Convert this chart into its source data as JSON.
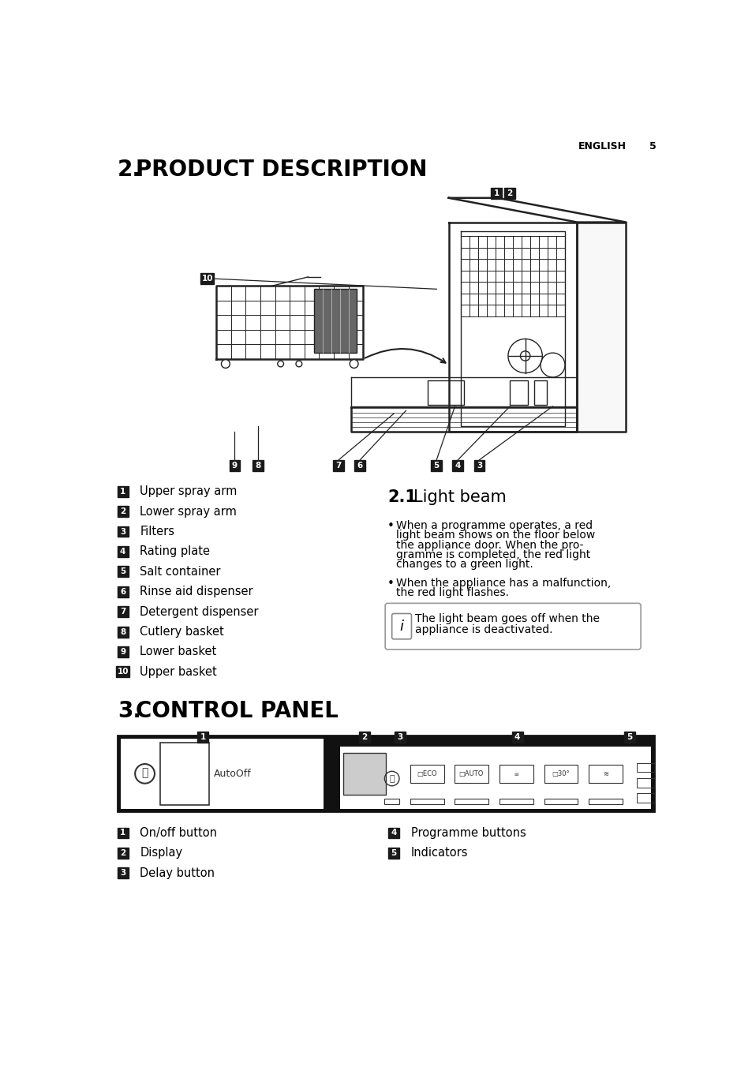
{
  "page_header": "ENGLISH",
  "page_num": "5",
  "section2_bold": "2.",
  "section2_title": "PRODUCT DESCRIPTION",
  "section3_bold": "3.",
  "section3_title": "CONTROL PANEL",
  "section21_bold": "2.1",
  "section21_title": "Light beam",
  "parts_list": [
    [
      "1",
      "Upper spray arm"
    ],
    [
      "2",
      "Lower spray arm"
    ],
    [
      "3",
      "Filters"
    ],
    [
      "4",
      "Rating plate"
    ],
    [
      "5",
      "Salt container"
    ],
    [
      "6",
      "Rinse aid dispenser"
    ],
    [
      "7",
      "Detergent dispenser"
    ],
    [
      "8",
      "Cutlery basket"
    ],
    [
      "9",
      "Lower basket"
    ],
    [
      "10",
      "Upper basket"
    ]
  ],
  "bullet1_lines": [
    "When a programme operates, a red",
    "light beam shows on the floor below",
    "the appliance door. When the pro-",
    "gramme is completed, the red light",
    "changes to a green light."
  ],
  "bullet2_lines": [
    "When the appliance has a malfunction,",
    "the red light flashes."
  ],
  "info_text_lines": [
    "The light beam goes off when the",
    "appliance is deactivated."
  ],
  "control_labels_left": [
    [
      "1",
      "On/off button"
    ],
    [
      "2",
      "Display"
    ],
    [
      "3",
      "Delay button"
    ]
  ],
  "control_labels_right": [
    [
      "4",
      "Programme buttons"
    ],
    [
      "5",
      "Indicators"
    ]
  ],
  "bg_color": "#ffffff",
  "black": "#000000",
  "label_bg": "#1a1a1a",
  "gray": "#888888"
}
